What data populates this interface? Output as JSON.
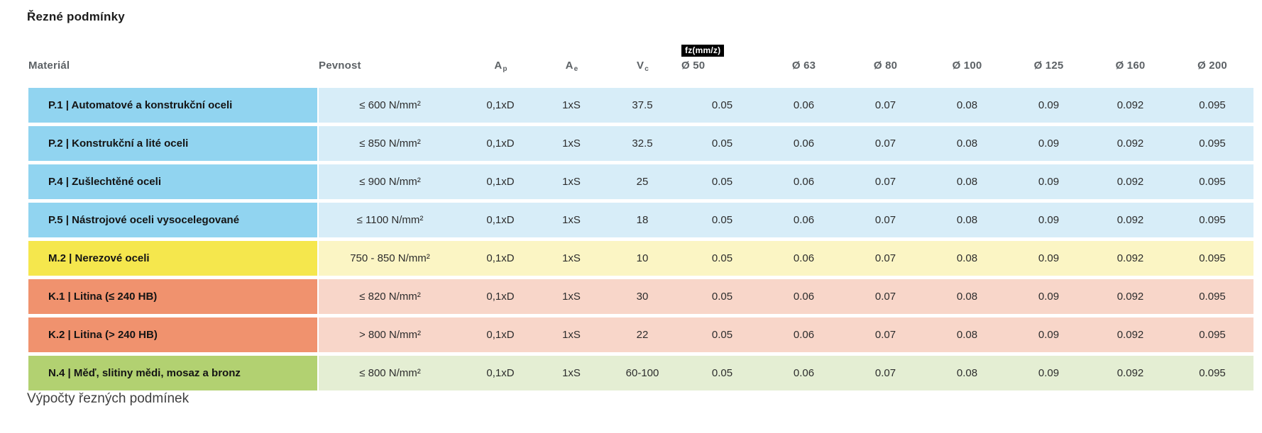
{
  "page": {
    "title": "Řezné podmínky",
    "section_below": "Výpočty řezných podmínek"
  },
  "table": {
    "headers": {
      "material": "Materiál",
      "strength": "Pevnost",
      "ap": {
        "base": "A",
        "sub": "p"
      },
      "ae": {
        "base": "A",
        "sub": "e"
      },
      "vc": {
        "base": "V",
        "sub": "c"
      },
      "fz_badge": "fz(mm/z)",
      "diameters": [
        "Ø 50",
        "Ø 63",
        "Ø 80",
        "Ø 100",
        "Ø 125",
        "Ø 160",
        "Ø 200"
      ]
    },
    "colors": {
      "blue": {
        "label_bg": "#91d4f0",
        "row_bg": "#d7edf8"
      },
      "yellow": {
        "label_bg": "#f5e74d",
        "row_bg": "#fbf5c4"
      },
      "salmon": {
        "label_bg": "#f0926e",
        "row_bg": "#f8d6c9"
      },
      "green": {
        "label_bg": "#b2d171",
        "row_bg": "#e4eed3"
      }
    },
    "rows": [
      {
        "material": "P.1 | Automatové a konstrukční oceli",
        "strength": "≤ 600 N/mm²",
        "ap": "0,1xD",
        "ae": "1xS",
        "vc": "37.5",
        "fz": [
          "0.05",
          "0.06",
          "0.07",
          "0.08",
          "0.09",
          "0.092",
          "0.095"
        ],
        "color_group": "blue"
      },
      {
        "material": "P.2 | Konstrukční a lité oceli",
        "strength": "≤ 850 N/mm²",
        "ap": "0,1xD",
        "ae": "1xS",
        "vc": "32.5",
        "fz": [
          "0.05",
          "0.06",
          "0.07",
          "0.08",
          "0.09",
          "0.092",
          "0.095"
        ],
        "color_group": "blue"
      },
      {
        "material": "P.4 | Zušlechtěné oceli",
        "strength": "≤ 900 N/mm²",
        "ap": "0,1xD",
        "ae": "1xS",
        "vc": "25",
        "fz": [
          "0.05",
          "0.06",
          "0.07",
          "0.08",
          "0.09",
          "0.092",
          "0.095"
        ],
        "color_group": "blue"
      },
      {
        "material": "P.5 | Nástrojové oceli vysocelegované",
        "strength": "≤ 1100 N/mm²",
        "ap": "0,1xD",
        "ae": "1xS",
        "vc": "18",
        "fz": [
          "0.05",
          "0.06",
          "0.07",
          "0.08",
          "0.09",
          "0.092",
          "0.095"
        ],
        "color_group": "blue"
      },
      {
        "material": "M.2 | Nerezové oceli",
        "strength": "750 - 850 N/mm²",
        "ap": "0,1xD",
        "ae": "1xS",
        "vc": "10",
        "fz": [
          "0.05",
          "0.06",
          "0.07",
          "0.08",
          "0.09",
          "0.092",
          "0.095"
        ],
        "color_group": "yellow"
      },
      {
        "material": "K.1 | Litina (≤ 240 HB)",
        "strength": "≤ 820 N/mm²",
        "ap": "0,1xD",
        "ae": "1xS",
        "vc": "30",
        "fz": [
          "0.05",
          "0.06",
          "0.07",
          "0.08",
          "0.09",
          "0.092",
          "0.095"
        ],
        "color_group": "salmon"
      },
      {
        "material": "K.2 | Litina (> 240 HB)",
        "strength": "> 800 N/mm²",
        "ap": "0,1xD",
        "ae": "1xS",
        "vc": "22",
        "fz": [
          "0.05",
          "0.06",
          "0.07",
          "0.08",
          "0.09",
          "0.092",
          "0.095"
        ],
        "color_group": "salmon"
      },
      {
        "material": "N.4 | Měď, slitiny mědi, mosaz a bronz",
        "strength": "≤ 800 N/mm²",
        "ap": "0,1xD",
        "ae": "1xS",
        "vc": "60-100",
        "fz": [
          "0.05",
          "0.06",
          "0.07",
          "0.08",
          "0.09",
          "0.092",
          "0.095"
        ],
        "color_group": "green"
      }
    ]
  }
}
